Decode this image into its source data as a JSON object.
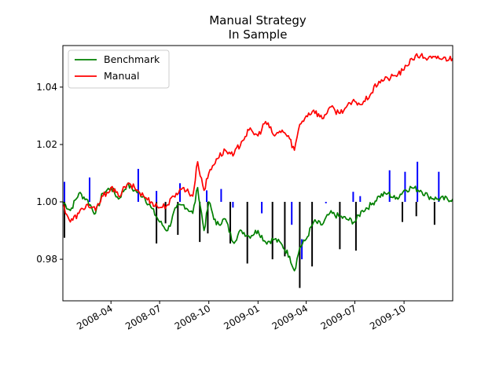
{
  "chart_data": {
    "type": "line",
    "title": "Manual Strategy",
    "subtitle": "In Sample",
    "xlabel": "",
    "ylabel": "",
    "x_range": [
      "2008-01-02",
      "2009-12-31"
    ],
    "ylim": [
      0.9655,
      1.0545
    ],
    "grid": false,
    "legend_position": "top-left",
    "x_ticks": [
      "2008-04",
      "2008-07",
      "2008-10",
      "2009-01",
      "2009-04",
      "2009-07",
      "2009-10"
    ],
    "y_ticks": [
      "0.98",
      "1.00",
      "1.02",
      "1.04"
    ],
    "series": [
      {
        "name": "Benchmark",
        "color": "#008000",
        "points": [
          [
            "2008-01-02",
            1.0
          ],
          [
            "2008-01-16",
            0.997
          ],
          [
            "2008-02-01",
            1.003
          ],
          [
            "2008-02-15",
            1.001
          ],
          [
            "2008-03-03",
            0.996
          ],
          [
            "2008-03-17",
            1.003
          ],
          [
            "2008-04-01",
            1.005
          ],
          [
            "2008-04-15",
            1.001
          ],
          [
            "2008-05-01",
            1.006
          ],
          [
            "2008-05-15",
            1.004
          ],
          [
            "2008-06-01",
            1.002
          ],
          [
            "2008-06-15",
            0.998
          ],
          [
            "2008-07-01",
            0.993
          ],
          [
            "2008-07-16",
            0.99
          ],
          [
            "2008-08-01",
            0.998
          ],
          [
            "2008-08-15",
            0.999
          ],
          [
            "2008-09-01",
            0.996
          ],
          [
            "2008-09-10",
            1.005
          ],
          [
            "2008-09-22",
            0.99
          ],
          [
            "2008-10-01",
            1.0
          ],
          [
            "2008-10-15",
            0.992
          ],
          [
            "2008-11-01",
            0.994
          ],
          [
            "2008-11-15",
            0.986
          ],
          [
            "2008-12-01",
            0.99
          ],
          [
            "2008-12-15",
            0.988
          ],
          [
            "2009-01-01",
            0.99
          ],
          [
            "2009-01-15",
            0.986
          ],
          [
            "2009-02-01",
            0.987
          ],
          [
            "2009-02-15",
            0.985
          ],
          [
            "2009-03-01",
            0.981
          ],
          [
            "2009-03-10",
            0.976
          ],
          [
            "2009-03-20",
            0.984
          ],
          [
            "2009-04-01",
            0.987
          ],
          [
            "2009-04-15",
            0.993
          ],
          [
            "2009-05-01",
            0.992
          ],
          [
            "2009-05-15",
            0.996
          ],
          [
            "2009-06-01",
            0.995
          ],
          [
            "2009-06-15",
            0.994
          ],
          [
            "2009-07-01",
            0.993
          ],
          [
            "2009-07-15",
            0.997
          ],
          [
            "2009-08-01",
            0.999
          ],
          [
            "2009-08-15",
            1.002
          ],
          [
            "2009-09-01",
            1.003
          ],
          [
            "2009-09-15",
            1.001
          ],
          [
            "2009-10-01",
            1.004
          ],
          [
            "2009-10-15",
            1.005
          ],
          [
            "2009-11-01",
            1.004
          ],
          [
            "2009-11-15",
            1.002
          ],
          [
            "2009-12-01",
            1.001
          ],
          [
            "2009-12-31",
            1.001
          ]
        ]
      },
      {
        "name": "Manual",
        "color": "#ff0000",
        "points": [
          [
            "2008-01-02",
            0.999
          ],
          [
            "2008-01-16",
            0.993
          ],
          [
            "2008-02-01",
            0.996
          ],
          [
            "2008-02-15",
            0.999
          ],
          [
            "2008-03-03",
            0.997
          ],
          [
            "2008-03-17",
            1.002
          ],
          [
            "2008-04-01",
            1.005
          ],
          [
            "2008-04-15",
            1.002
          ],
          [
            "2008-05-01",
            1.006
          ],
          [
            "2008-05-15",
            1.005
          ],
          [
            "2008-06-01",
            1.002
          ],
          [
            "2008-06-15",
            1.0
          ],
          [
            "2008-07-01",
            0.998
          ],
          [
            "2008-07-16",
            0.999
          ],
          [
            "2008-08-01",
            1.003
          ],
          [
            "2008-08-15",
            1.005
          ],
          [
            "2008-09-01",
            1.002
          ],
          [
            "2008-09-10",
            1.014
          ],
          [
            "2008-09-22",
            1.004
          ],
          [
            "2008-10-01",
            1.01
          ],
          [
            "2008-10-15",
            1.015
          ],
          [
            "2008-11-01",
            1.018
          ],
          [
            "2008-11-15",
            1.016
          ],
          [
            "2008-12-01",
            1.021
          ],
          [
            "2008-12-15",
            1.025
          ],
          [
            "2009-01-01",
            1.023
          ],
          [
            "2009-01-15",
            1.028
          ],
          [
            "2009-02-01",
            1.023
          ],
          [
            "2009-02-15",
            1.025
          ],
          [
            "2009-03-01",
            1.022
          ],
          [
            "2009-03-10",
            1.018
          ],
          [
            "2009-03-20",
            1.027
          ],
          [
            "2009-04-01",
            1.03
          ],
          [
            "2009-04-15",
            1.032
          ],
          [
            "2009-05-01",
            1.029
          ],
          [
            "2009-05-15",
            1.033
          ],
          [
            "2009-06-01",
            1.031
          ],
          [
            "2009-06-15",
            1.033
          ],
          [
            "2009-07-01",
            1.035
          ],
          [
            "2009-07-15",
            1.034
          ],
          [
            "2009-08-01",
            1.038
          ],
          [
            "2009-08-15",
            1.042
          ],
          [
            "2009-09-01",
            1.043
          ],
          [
            "2009-09-15",
            1.044
          ],
          [
            "2009-10-01",
            1.046
          ],
          [
            "2009-10-15",
            1.05
          ],
          [
            "2009-11-01",
            1.051
          ],
          [
            "2009-11-15",
            1.05
          ],
          [
            "2009-12-01",
            1.05
          ],
          [
            "2009-12-31",
            1.05
          ]
        ]
      }
    ],
    "entry_markers": [
      {
        "date": "2008-01-05",
        "kind": "long",
        "color": "#0000ff",
        "from": 1.0,
        "to": 1.007
      },
      {
        "date": "2008-01-05",
        "kind": "short",
        "color": "#000000",
        "from": 0.9875,
        "to": 1.0
      },
      {
        "date": "2008-02-21",
        "kind": "long",
        "color": "#0000ff",
        "from": 1.0,
        "to": 1.0085
      },
      {
        "date": "2008-05-22",
        "kind": "long",
        "color": "#0000ff",
        "from": 1.0,
        "to": 1.0115
      },
      {
        "date": "2008-06-25",
        "kind": "long",
        "color": "#0000ff",
        "from": 1.0,
        "to": 1.0038
      },
      {
        "date": "2008-06-25",
        "kind": "short",
        "color": "#000000",
        "from": 0.9855,
        "to": 1.0
      },
      {
        "date": "2008-07-12",
        "kind": "short",
        "color": "#000000",
        "from": 0.9925,
        "to": 1.0
      },
      {
        "date": "2008-08-04",
        "kind": "short",
        "color": "#000000",
        "from": 0.9885,
        "to": 1.0
      },
      {
        "date": "2008-08-08",
        "kind": "long",
        "color": "#0000ff",
        "from": 1.0,
        "to": 1.0065
      },
      {
        "date": "2008-09-14",
        "kind": "short",
        "color": "#000000",
        "from": 0.986,
        "to": 1.0
      },
      {
        "date": "2008-09-27",
        "kind": "long",
        "color": "#0000ff",
        "from": 1.0,
        "to": 1.004
      },
      {
        "date": "2008-09-29",
        "kind": "short",
        "color": "#000000",
        "from": 0.989,
        "to": 1.0
      },
      {
        "date": "2008-10-24",
        "kind": "long",
        "color": "#0000ff",
        "from": 1.0,
        "to": 1.0045
      },
      {
        "date": "2008-11-10",
        "kind": "short",
        "color": "#000000",
        "from": 0.9855,
        "to": 1.0
      },
      {
        "date": "2008-11-15",
        "kind": "long",
        "color": "#0000ff",
        "from": 1.0,
        "to": 0.998
      },
      {
        "date": "2008-12-12",
        "kind": "short",
        "color": "#000000",
        "from": 0.9785,
        "to": 1.0
      },
      {
        "date": "2009-01-08",
        "kind": "long",
        "color": "#0000ff",
        "from": 1.0,
        "to": 0.996
      },
      {
        "date": "2009-01-28",
        "kind": "short",
        "color": "#000000",
        "from": 0.98,
        "to": 1.0
      },
      {
        "date": "2009-02-20",
        "kind": "short",
        "color": "#000000",
        "from": 0.981,
        "to": 1.0
      },
      {
        "date": "2009-03-05",
        "kind": "long",
        "color": "#0000ff",
        "from": 1.0,
        "to": 0.992
      },
      {
        "date": "2009-03-20",
        "kind": "short",
        "color": "#000000",
        "from": 0.97,
        "to": 1.0
      },
      {
        "date": "2009-03-24",
        "kind": "long",
        "color": "#0000ff",
        "from": 0.98,
        "to": 0.987
      },
      {
        "date": "2009-04-12",
        "kind": "short",
        "color": "#000000",
        "from": 0.9775,
        "to": 1.0
      },
      {
        "date": "2009-05-08",
        "kind": "long",
        "color": "#0000ff",
        "from": 1.0,
        "to": 0.9995
      },
      {
        "date": "2009-06-03",
        "kind": "short",
        "color": "#000000",
        "from": 0.9835,
        "to": 1.0
      },
      {
        "date": "2009-06-28",
        "kind": "long",
        "color": "#0000ff",
        "from": 1.0,
        "to": 1.0035
      },
      {
        "date": "2009-07-03",
        "kind": "short",
        "color": "#000000",
        "from": 0.983,
        "to": 1.0
      },
      {
        "date": "2009-07-11",
        "kind": "long",
        "color": "#0000ff",
        "from": 1.0,
        "to": 1.002
      },
      {
        "date": "2009-09-04",
        "kind": "long",
        "color": "#0000ff",
        "from": 1.0,
        "to": 1.011
      },
      {
        "date": "2009-09-28",
        "kind": "short",
        "color": "#000000",
        "from": 0.993,
        "to": 1.0
      },
      {
        "date": "2009-10-03",
        "kind": "long",
        "color": "#0000ff",
        "from": 1.0,
        "to": 1.0105
      },
      {
        "date": "2009-10-24",
        "kind": "short",
        "color": "#000000",
        "from": 0.995,
        "to": 1.0
      },
      {
        "date": "2009-10-26",
        "kind": "long",
        "color": "#0000ff",
        "from": 1.0,
        "to": 1.014
      },
      {
        "date": "2009-11-27",
        "kind": "short",
        "color": "#000000",
        "from": 0.992,
        "to": 1.0
      },
      {
        "date": "2009-12-05",
        "kind": "long",
        "color": "#0000ff",
        "from": 1.0,
        "to": 1.0105
      }
    ]
  }
}
